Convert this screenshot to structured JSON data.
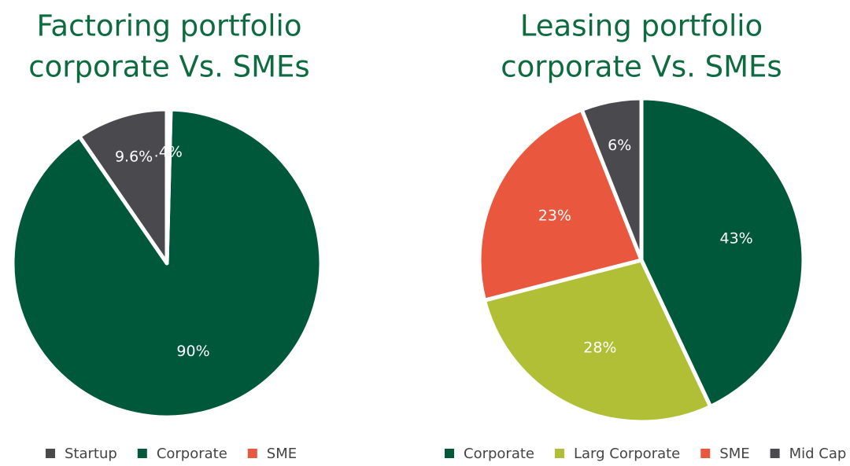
{
  "chart_data": [
    {
      "type": "pie",
      "title": [
        "Factoring portfolio",
        "corporate Vs. SMEs"
      ],
      "categories": [
        "Startup",
        "Corporate",
        "SME"
      ],
      "values": [
        9.6,
        90,
        0.4
      ],
      "value_labels": [
        "9.6%",
        "90%",
        ".4%"
      ],
      "colors": [
        "#4a494e",
        "#00583a",
        "#e9573f"
      ],
      "direction": "counterclockwise",
      "legend": "bottom"
    },
    {
      "type": "pie",
      "title": [
        "Leasing portfolio",
        "corporate Vs. SMEs"
      ],
      "categories": [
        "Corporate",
        "Larg Corporate",
        "SME",
        "Mid Cap"
      ],
      "values": [
        43,
        28,
        23,
        6
      ],
      "value_labels": [
        "43%",
        "28%",
        "23%",
        "6%"
      ],
      "colors": [
        "#00583a",
        "#b0bf35",
        "#e9573f",
        "#4a494e"
      ],
      "direction": "clockwise",
      "legend": "bottom"
    }
  ]
}
